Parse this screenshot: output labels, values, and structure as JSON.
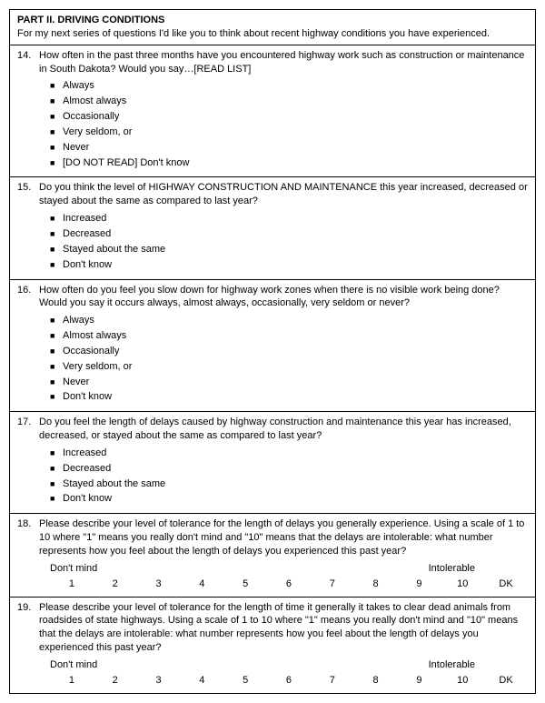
{
  "header": {
    "part_title": "PART II. DRIVING CONDITIONS",
    "intro": "For my next series of questions I'd like you to think about recent highway conditions you have experienced."
  },
  "q14": {
    "num": "14.",
    "text": "How often in the past three months have you encountered highway work such as construction or maintenance in South Dakota? Would you say…[READ LIST]",
    "options": [
      "Always",
      "Almost always",
      "Occasionally",
      "Very seldom, or",
      "Never",
      "[DO NOT READ] Don't know"
    ]
  },
  "q15": {
    "num": "15.",
    "text": "Do you think the level of HIGHWAY CONSTRUCTION AND MAINTENANCE this year increased, decreased or stayed about the same as compared to last year?",
    "options": [
      "Increased",
      "Decreased",
      "Stayed about the same",
      "Don't know"
    ]
  },
  "q16": {
    "num": "16.",
    "text": "How often do you feel you slow down for highway work zones when there is no visible work being done? Would you say it occurs always, almost always, occasionally, very seldom or never?",
    "options": [
      "Always",
      "Almost always",
      "Occasionally",
      "Very seldom, or",
      "Never",
      "Don't know"
    ]
  },
  "q17": {
    "num": "17.",
    "text": "Do you feel the length of delays caused by highway construction and maintenance this year has increased, decreased, or stayed about the same as compared to last year?",
    "options": [
      "Increased",
      "Decreased",
      "Stayed about the same",
      "Don't know"
    ]
  },
  "q18": {
    "num": "18.",
    "text": "Please describe your level of tolerance for the length of delays you generally experience. Using a scale of 1 to 10 where \"1\" means you really don't mind and \"10\" means that the delays are intolerable: what number represents how you feel about the length of delays you experienced this past year?",
    "scale_left": "Don't mind",
    "scale_right": "Intolerable",
    "scale": [
      "1",
      "2",
      "3",
      "4",
      "5",
      "6",
      "7",
      "8",
      "9",
      "10",
      "DK"
    ]
  },
  "q19": {
    "num": "19.",
    "text": "Please describe your level of tolerance for the length of time it generally it takes to clear dead animals from roadsides of state highways. Using a scale of 1 to 10 where \"1\" means you really don't mind and \"10\" means that the delays are intolerable: what number represents how you feel about the length of delays you experienced this past year?",
    "scale_left": "Don't mind",
    "scale_right": "Intolerable",
    "scale": [
      "1",
      "2",
      "3",
      "4",
      "5",
      "6",
      "7",
      "8",
      "9",
      "10",
      "DK"
    ]
  }
}
